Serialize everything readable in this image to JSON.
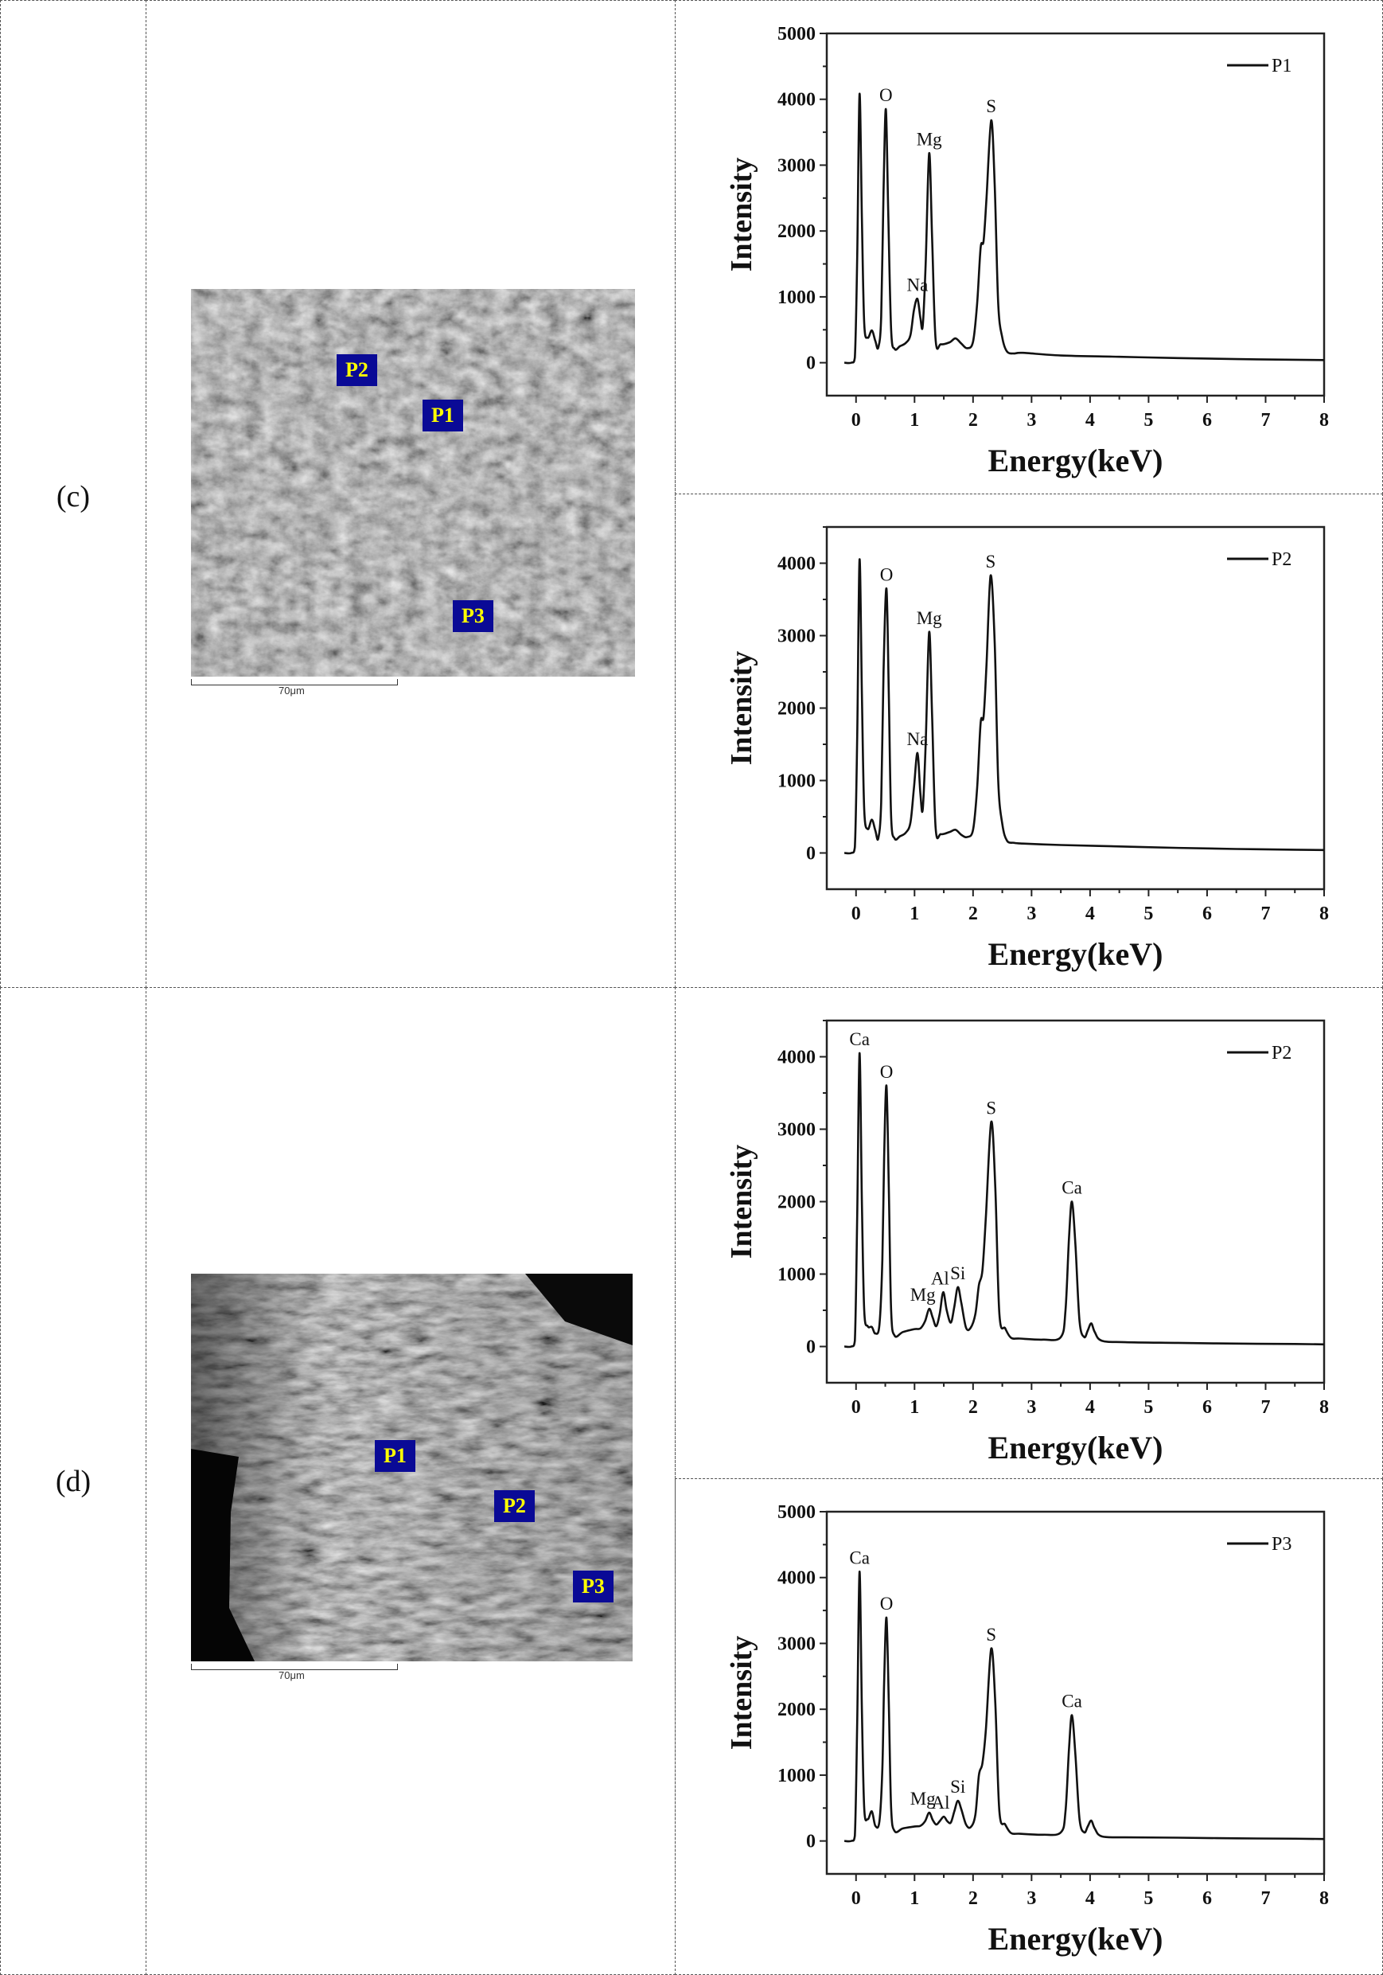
{
  "rows": [
    {
      "label": "(c)",
      "image": {
        "markers": [
          "P1",
          "P2",
          "P3"
        ],
        "scale_bar": "70μm"
      }
    },
    {
      "label": "(d)",
      "image": {
        "markers": [
          "P1",
          "P2",
          "P3"
        ],
        "scale_bar": "70μm"
      }
    }
  ],
  "colors": {
    "marker_bg": "#0a0a96",
    "marker_text": "#ffff00",
    "line": "#111111"
  },
  "chart_data": [
    {
      "type": "line",
      "panel": "(c)",
      "xlabel": "Energy(keV)",
      "ylabel": "Intensity",
      "xlim": [
        -0.5,
        8
      ],
      "ylim": [
        -500,
        5000
      ],
      "xticks": [
        0,
        1,
        2,
        3,
        4,
        5,
        6,
        7,
        8
      ],
      "yticks": [
        0,
        1000,
        2000,
        3000,
        4000,
        5000
      ],
      "grid": false,
      "legend": "top-right",
      "series": [
        {
          "name": "P1",
          "x": [
            -0.2,
            -0.08,
            -0.02,
            0.02,
            0.06,
            0.1,
            0.14,
            0.2,
            0.27,
            0.33,
            0.38,
            0.43,
            0.47,
            0.51,
            0.55,
            0.6,
            0.66,
            0.75,
            0.85,
            0.93,
            0.99,
            1.05,
            1.1,
            1.14,
            1.19,
            1.25,
            1.3,
            1.36,
            1.45,
            1.6,
            1.7,
            1.8,
            1.9,
            2.0,
            2.07,
            2.13,
            2.18,
            2.23,
            2.31,
            2.37,
            2.43,
            2.5,
            2.58,
            2.7,
            2.85,
            3.5,
            4.5,
            5.5,
            6.5,
            7.5,
            8
          ],
          "y": [
            0,
            0,
            80,
            1600,
            4080,
            2200,
            600,
            380,
            490,
            330,
            230,
            700,
            2600,
            3850,
            2300,
            500,
            210,
            250,
            300,
            420,
            800,
            970,
            680,
            560,
            1500,
            3180,
            1900,
            350,
            280,
            310,
            370,
            290,
            220,
            320,
            900,
            1750,
            1850,
            2500,
            3680,
            2700,
            900,
            380,
            170,
            140,
            150,
            110,
            90,
            70,
            55,
            45,
            40
          ]
        }
      ],
      "peak_labels": [
        {
          "text": "O",
          "x": 0.51,
          "y": 3850
        },
        {
          "text": "Na",
          "x": 1.05,
          "y": 970
        },
        {
          "text": "Mg",
          "x": 1.25,
          "y": 3180
        },
        {
          "text": "S",
          "x": 2.31,
          "y": 3680
        }
      ]
    },
    {
      "type": "line",
      "panel": "(c)",
      "xlabel": "Energy(keV)",
      "ylabel": "Intensity",
      "xlim": [
        -0.5,
        8
      ],
      "ylim": [
        -500,
        4500
      ],
      "xticks": [
        0,
        1,
        2,
        3,
        4,
        5,
        6,
        7,
        8
      ],
      "yticks": [
        0,
        1000,
        2000,
        3000,
        4000
      ],
      "grid": false,
      "legend": "top-right",
      "series": [
        {
          "name": "P2",
          "x": [
            -0.2,
            -0.08,
            -0.02,
            0.02,
            0.06,
            0.1,
            0.14,
            0.2,
            0.27,
            0.33,
            0.38,
            0.43,
            0.47,
            0.52,
            0.56,
            0.6,
            0.66,
            0.75,
            0.85,
            0.93,
            0.99,
            1.05,
            1.1,
            1.14,
            1.19,
            1.25,
            1.3,
            1.36,
            1.45,
            1.6,
            1.7,
            1.8,
            1.9,
            2.0,
            2.07,
            2.13,
            2.18,
            2.23,
            2.3,
            2.37,
            2.43,
            2.5,
            2.58,
            2.7,
            2.85,
            3.5,
            4.5,
            5.5,
            6.5,
            7.5,
            8
          ],
          "y": [
            0,
            0,
            80,
            1600,
            4050,
            2200,
            600,
            330,
            460,
            310,
            200,
            700,
            2500,
            3650,
            2200,
            500,
            200,
            230,
            280,
            420,
            900,
            1380,
            820,
            600,
            1500,
            3050,
            1900,
            350,
            260,
            290,
            320,
            250,
            220,
            320,
            900,
            1800,
            1880,
            2600,
            3830,
            2900,
            1000,
            400,
            170,
            140,
            130,
            110,
            90,
            70,
            55,
            45,
            40
          ]
        }
      ],
      "peak_labels": [
        {
          "text": "O",
          "x": 0.52,
          "y": 3650
        },
        {
          "text": "Na",
          "x": 1.05,
          "y": 1380
        },
        {
          "text": "Mg",
          "x": 1.25,
          "y": 3050
        },
        {
          "text": "S",
          "x": 2.3,
          "y": 3830
        }
      ]
    },
    {
      "type": "line",
      "panel": "(d)",
      "xlabel": "Energy(keV)",
      "ylabel": "Intensity",
      "xlim": [
        -0.5,
        8
      ],
      "ylim": [
        -500,
        4500
      ],
      "xticks": [
        0,
        1,
        2,
        3,
        4,
        5,
        6,
        7,
        8
      ],
      "yticks": [
        0,
        1000,
        2000,
        3000,
        4000
      ],
      "grid": false,
      "legend": "top-right",
      "series": [
        {
          "name": "P2",
          "x": [
            -0.2,
            -0.08,
            -0.02,
            0.02,
            0.06,
            0.1,
            0.14,
            0.2,
            0.27,
            0.33,
            0.4,
            0.45,
            0.48,
            0.52,
            0.56,
            0.6,
            0.66,
            0.8,
            1.0,
            1.1,
            1.18,
            1.25,
            1.31,
            1.37,
            1.43,
            1.49,
            1.55,
            1.62,
            1.68,
            1.74,
            1.8,
            1.88,
            1.96,
            2.04,
            2.1,
            2.16,
            2.22,
            2.31,
            2.38,
            2.45,
            2.55,
            2.65,
            2.8,
            3.2,
            3.5,
            3.58,
            3.64,
            3.69,
            3.75,
            3.82,
            3.9,
            3.96,
            4.02,
            4.08,
            4.2,
            4.6,
            5.5,
            6.5,
            7.5,
            8
          ],
          "y": [
            0,
            0,
            80,
            1800,
            4050,
            2000,
            500,
            280,
            270,
            180,
            300,
            1200,
            2600,
            3600,
            2200,
            500,
            150,
            200,
            240,
            250,
            350,
            520,
            400,
            280,
            450,
            750,
            500,
            330,
            550,
            820,
            600,
            260,
            260,
            450,
            850,
            1050,
            1800,
            3100,
            2200,
            450,
            250,
            120,
            110,
            95,
            130,
            500,
            1500,
            2000,
            1400,
            350,
            130,
            220,
            320,
            200,
            80,
            60,
            50,
            40,
            35,
            30
          ]
        }
      ],
      "peak_labels": [
        {
          "text": "Ca",
          "x": 0.06,
          "y": 4050
        },
        {
          "text": "O",
          "x": 0.52,
          "y": 3600
        },
        {
          "text": "Mg",
          "x": 1.25,
          "y": 520
        },
        {
          "text": "Al",
          "x": 1.49,
          "y": 750
        },
        {
          "text": "Si",
          "x": 1.74,
          "y": 820
        },
        {
          "text": "S",
          "x": 2.31,
          "y": 3100
        },
        {
          "text": "Ca",
          "x": 3.69,
          "y": 2000
        }
      ]
    },
    {
      "type": "line",
      "panel": "(d)",
      "xlabel": "Energy(keV)",
      "ylabel": "Intensity",
      "xlim": [
        -0.5,
        8
      ],
      "ylim": [
        -500,
        5000
      ],
      "xticks": [
        0,
        1,
        2,
        3,
        4,
        5,
        6,
        7,
        8
      ],
      "yticks": [
        0,
        1000,
        2000,
        3000,
        4000,
        5000
      ],
      "grid": false,
      "legend": "top-right",
      "series": [
        {
          "name": "P3",
          "x": [
            -0.2,
            -0.08,
            -0.02,
            0.02,
            0.06,
            0.1,
            0.14,
            0.2,
            0.27,
            0.33,
            0.4,
            0.45,
            0.48,
            0.52,
            0.56,
            0.6,
            0.66,
            0.8,
            1.0,
            1.1,
            1.18,
            1.25,
            1.31,
            1.37,
            1.43,
            1.5,
            1.56,
            1.62,
            1.68,
            1.74,
            1.8,
            1.88,
            1.96,
            2.04,
            2.1,
            2.16,
            2.22,
            2.31,
            2.38,
            2.45,
            2.55,
            2.65,
            2.8,
            3.2,
            3.5,
            3.58,
            3.64,
            3.69,
            3.75,
            3.82,
            3.9,
            3.96,
            4.02,
            4.08,
            4.2,
            4.6,
            5.5,
            6.5,
            7.5,
            8
          ],
          "y": [
            0,
            0,
            80,
            1800,
            4090,
            2000,
            500,
            330,
            450,
            230,
            300,
            1100,
            2400,
            3390,
            2100,
            500,
            150,
            190,
            220,
            230,
            300,
            430,
            320,
            250,
            300,
            370,
            300,
            280,
            450,
            610,
            480,
            250,
            210,
            400,
            1000,
            1180,
            1700,
            2920,
            2100,
            450,
            250,
            120,
            110,
            95,
            130,
            450,
            1400,
            1910,
            1300,
            330,
            130,
            220,
            310,
            190,
            70,
            55,
            50,
            40,
            35,
            30
          ]
        }
      ],
      "peak_labels": [
        {
          "text": "Ca",
          "x": 0.06,
          "y": 4090
        },
        {
          "text": "O",
          "x": 0.52,
          "y": 3390
        },
        {
          "text": "Mg",
          "x": 1.25,
          "y": 430
        },
        {
          "text": "Al",
          "x": 1.5,
          "y": 370
        },
        {
          "text": "Si",
          "x": 1.74,
          "y": 610
        },
        {
          "text": "S",
          "x": 2.31,
          "y": 2920
        },
        {
          "text": "Ca",
          "x": 3.69,
          "y": 1910
        }
      ]
    }
  ]
}
